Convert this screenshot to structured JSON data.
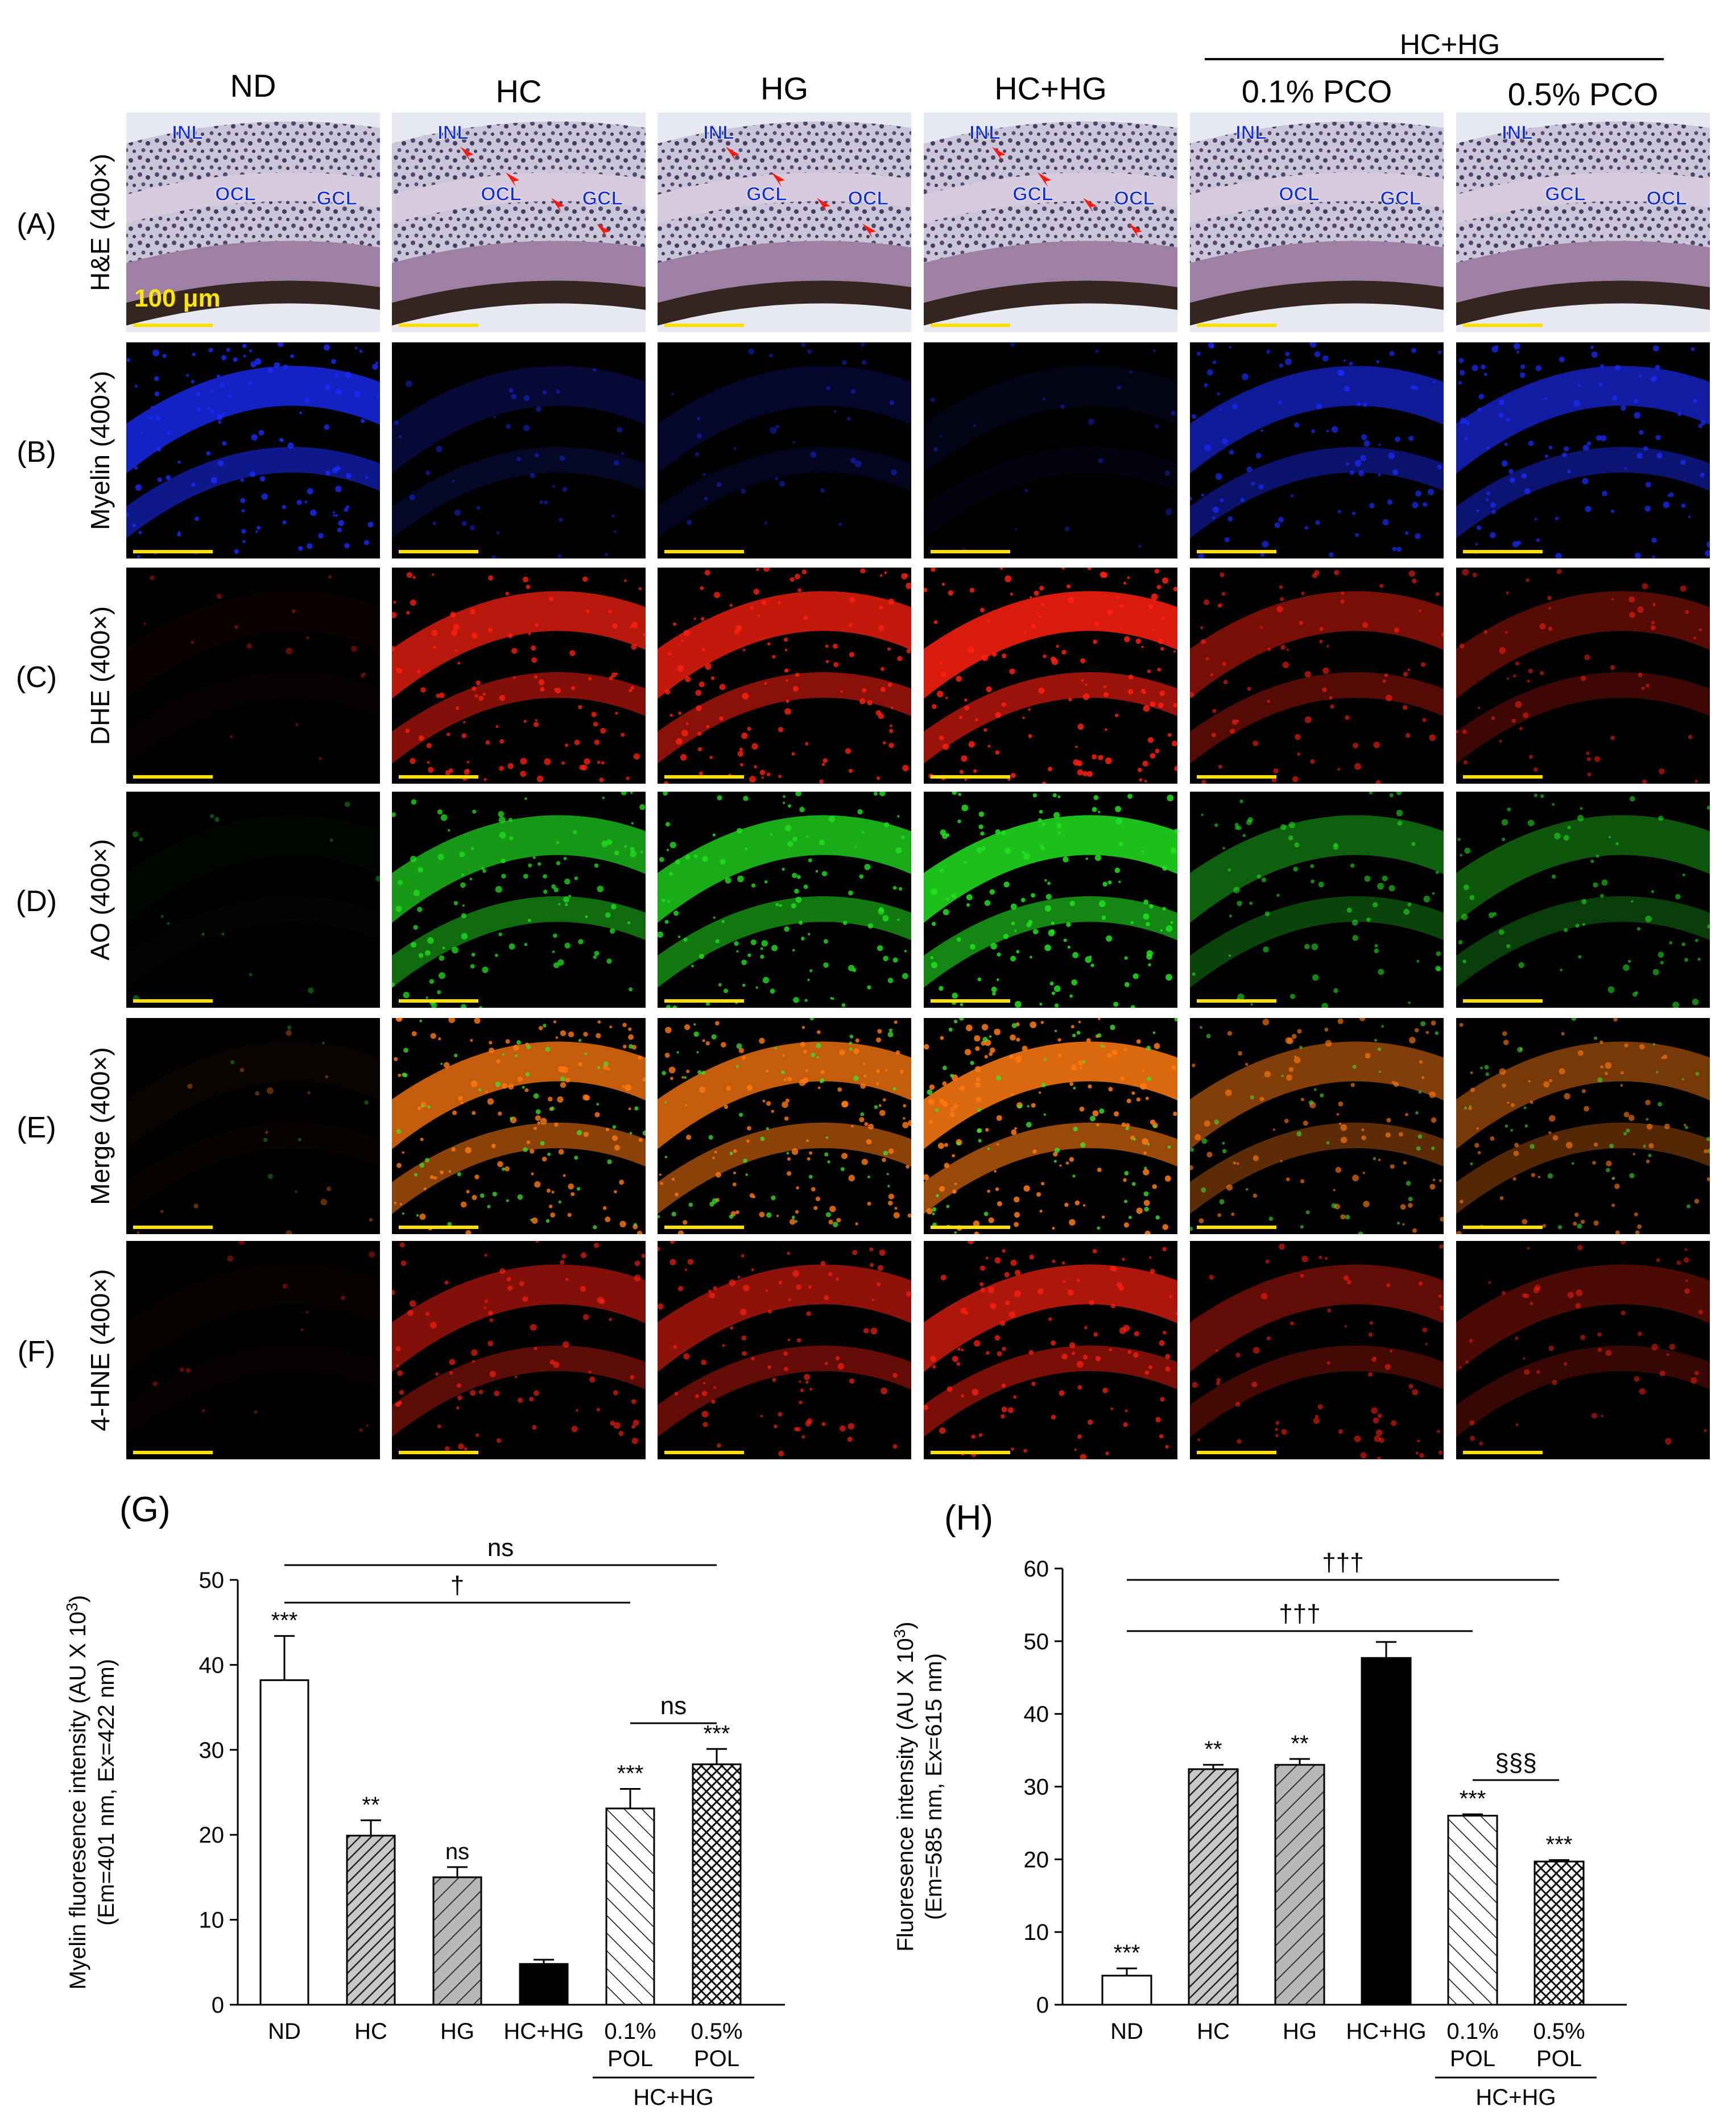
{
  "figure": {
    "columns": [
      "ND",
      "HC",
      "HG",
      "HC+HG",
      "0.1% PCO",
      "0.5% PCO"
    ],
    "pco_group_label": "HC+HG",
    "rows": [
      {
        "panel": "(A)",
        "stain": "H&E",
        "mag": "(400×)",
        "kind": "he"
      },
      {
        "panel": "(B)",
        "stain": "Myelin",
        "mag": "(400×)",
        "kind": "myelin",
        "color": "#1a2cff"
      },
      {
        "panel": "(C)",
        "stain": "DHE",
        "mag": "(400×)",
        "kind": "dhe",
        "color": "#ff2010"
      },
      {
        "panel": "(D)",
        "stain": "AO",
        "mag": "(400×)",
        "kind": "ao",
        "color": "#22e020"
      },
      {
        "panel": "(E)",
        "stain": "Merge",
        "mag": "(400×)",
        "kind": "merge",
        "color": "#ff7a10"
      },
      {
        "panel": "(F)",
        "stain": "4-HNE",
        "mag": "(400×)",
        "kind": "hne",
        "color": "#ff2010"
      }
    ],
    "he_labels": [
      [
        "INL",
        "OCL",
        "GCL"
      ],
      [
        "INL",
        "OCL",
        "GCL"
      ],
      [
        "INL",
        "GCL",
        "OCL"
      ],
      [
        "INL",
        "GCL",
        "OCL"
      ],
      [
        "INL",
        "OCL",
        "GCL"
      ],
      [
        "INL",
        "GCL",
        "OCL"
      ]
    ],
    "scale_bar_label": "100 μm",
    "intensity": {
      "myelin": [
        0.9,
        0.25,
        0.2,
        0.1,
        0.7,
        0.75
      ],
      "dhe": [
        0.05,
        0.85,
        0.9,
        1.0,
        0.55,
        0.4
      ],
      "ao": [
        0.03,
        0.8,
        0.9,
        1.0,
        0.5,
        0.45
      ],
      "merge": [
        0.04,
        0.9,
        0.9,
        1.0,
        0.6,
        0.55
      ],
      "hne": [
        0.03,
        0.6,
        0.65,
        0.8,
        0.45,
        0.35
      ]
    }
  },
  "chart_data": [
    {
      "panel_label": "(G)",
      "type": "bar",
      "categories": [
        "ND",
        "HC",
        "HG",
        "HC+HG",
        "0.1%\nPOL",
        "0.5%\nPOL"
      ],
      "values": [
        38.2,
        19.9,
        15.0,
        4.8,
        23.1,
        28.3
      ],
      "errors": [
        5.2,
        1.8,
        1.2,
        0.5,
        2.3,
        1.8
      ],
      "sig": [
        "***",
        "**",
        "ns",
        "",
        "***",
        "***"
      ],
      "fills": [
        "white",
        "hatch-dense",
        "hatch-gray",
        "black",
        "hatch-back",
        "crosshatch"
      ],
      "ylabel_line1": "Myelin fluoresence intensity (AU X 10",
      "ylabel_sup": "3",
      "ylabel_line1_end": ")",
      "ylabel_line2": "(Em=401 nm, Ex=422 nm)",
      "ylim": [
        0,
        50
      ],
      "yticks": [
        "0",
        "10",
        "20",
        "30",
        "40",
        "50"
      ],
      "group_label": "HC+HG",
      "brackets": [
        {
          "from": 0,
          "to": 5,
          "label": "ns"
        },
        {
          "from": 0,
          "to": 4,
          "label": "†"
        },
        {
          "from": 4,
          "to": 5,
          "label": "ns"
        }
      ]
    },
    {
      "panel_label": "(H)",
      "type": "bar",
      "categories": [
        "ND",
        "HC",
        "HG",
        "HC+HG",
        "0.1%\nPOL",
        "0.5%\nPOL"
      ],
      "values": [
        4.0,
        32.4,
        33.0,
        47.7,
        26.0,
        19.7
      ],
      "errors": [
        1.0,
        0.6,
        0.8,
        2.2,
        0.2,
        0.2
      ],
      "sig": [
        "***",
        "**",
        "**",
        "",
        "***",
        "***"
      ],
      "fills": [
        "white",
        "hatch-dense",
        "hatch-gray",
        "black",
        "hatch-back",
        "crosshatch"
      ],
      "ylabel_line1": "Fluoresence intensity (AU X 10",
      "ylabel_sup": "3",
      "ylabel_line1_end": ")",
      "ylabel_line2": "(Em=585 nm, Ex=615 nm)",
      "ylim": [
        0,
        60
      ],
      "yticks": [
        "0",
        "10",
        "20",
        "30",
        "40",
        "50",
        "60"
      ],
      "group_label": "HC+HG",
      "brackets": [
        {
          "from": 0,
          "to": 5,
          "label": "†††"
        },
        {
          "from": 0,
          "to": 4,
          "label": "†††"
        },
        {
          "from": 4,
          "to": 5,
          "label": "§§§"
        }
      ]
    }
  ]
}
